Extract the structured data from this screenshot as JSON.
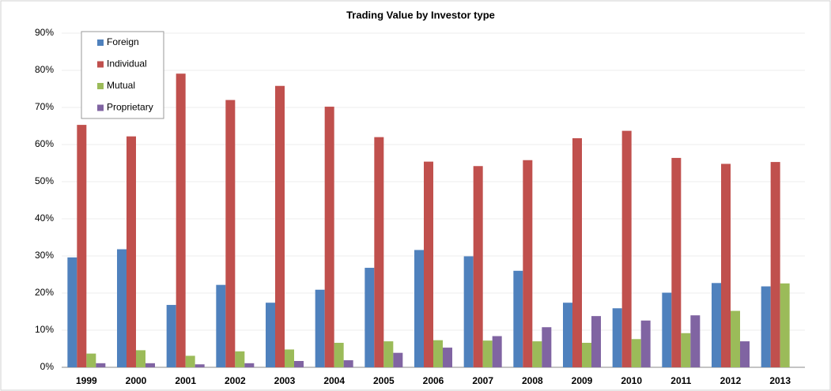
{
  "chart_data": {
    "type": "bar",
    "title": "Trading Value by Investor type",
    "categories": [
      "1999",
      "2000",
      "2001",
      "2002",
      "2003",
      "2004",
      "2005",
      "2006",
      "2007",
      "2008",
      "2009",
      "2010",
      "2011",
      "2012",
      "2013"
    ],
    "series": [
      {
        "name": "Foreign",
        "color": "#4f81bd",
        "values": [
          29.6,
          31.8,
          16.8,
          22.2,
          17.4,
          20.9,
          26.8,
          31.6,
          29.9,
          26.0,
          17.4,
          15.9,
          20.1,
          22.7,
          21.8
        ]
      },
      {
        "name": "Individual",
        "color": "#c0504d",
        "values": [
          65.3,
          62.2,
          79.1,
          72.0,
          75.8,
          70.2,
          62.0,
          55.4,
          54.2,
          55.8,
          61.7,
          63.7,
          56.4,
          54.8,
          55.3
        ]
      },
      {
        "name": "Mutual",
        "color": "#9bbb59",
        "values": [
          3.7,
          4.6,
          3.1,
          4.3,
          4.8,
          6.6,
          7.0,
          7.3,
          7.2,
          7.0,
          6.6,
          7.6,
          9.2,
          15.2,
          22.6
        ]
      },
      {
        "name": "Proprietary",
        "color": "#8064a2",
        "values": [
          1.1,
          1.1,
          0.8,
          1.1,
          1.7,
          1.9,
          3.9,
          5.3,
          8.4,
          10.8,
          13.8,
          12.6,
          14.0,
          7.0,
          null
        ]
      }
    ],
    "ylim": [
      0,
      90
    ],
    "yticks": [
      {
        "value": 0,
        "label": "0%"
      },
      {
        "value": 10,
        "label": "10%"
      },
      {
        "value": 20,
        "label": "20%"
      },
      {
        "value": 30,
        "label": "30%"
      },
      {
        "value": 40,
        "label": "40%"
      },
      {
        "value": 50,
        "label": "50%"
      },
      {
        "value": 60,
        "label": "60%"
      },
      {
        "value": 70,
        "label": "70%"
      },
      {
        "value": 80,
        "label": "80%"
      },
      {
        "value": 90,
        "label": "90%"
      }
    ],
    "grid": true,
    "legend": "upper left"
  }
}
